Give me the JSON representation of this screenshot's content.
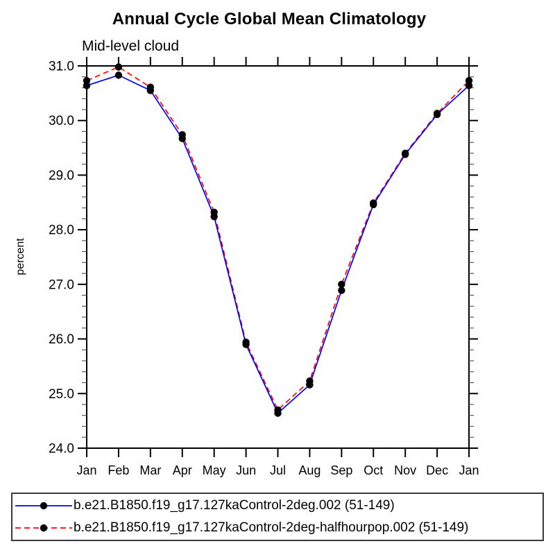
{
  "chart_data": {
    "type": "line",
    "title": "Annual Cycle Global Mean Climatology",
    "subtitle": "Mid-level cloud",
    "ylabel": "percent",
    "xlabel": "",
    "categories": [
      "Jan",
      "Feb",
      "Mar",
      "Apr",
      "May",
      "Jun",
      "Jul",
      "Aug",
      "Sep",
      "Oct",
      "Nov",
      "Dec",
      "Jan"
    ],
    "ylim": [
      24.0,
      31.0
    ],
    "ytick_major": 1.0,
    "ytick_minor": 0.2,
    "grid": false,
    "legend_position": "bottom",
    "frame_color": "#000000",
    "marker_color": "#000000",
    "series": [
      {
        "name": "b.e21.B1850.f19_g17.127kaControl-2deg.002 (51-149)",
        "color": "#0000ff",
        "style": "solid",
        "marker": "filled-circle",
        "values": [
          30.64,
          30.83,
          30.55,
          29.67,
          28.24,
          25.9,
          24.64,
          25.16,
          26.89,
          28.46,
          29.38,
          30.11,
          30.64
        ]
      },
      {
        "name": "b.e21.B1850.f19_g17.127kaControl-2deg-halfhourpop.002 (51-149)",
        "color": "#ff0000",
        "style": "dashed",
        "marker": "filled-circle",
        "values": [
          30.73,
          30.98,
          30.61,
          29.74,
          28.32,
          25.94,
          24.7,
          25.23,
          27.0,
          28.49,
          29.4,
          30.13,
          30.73
        ]
      }
    ]
  }
}
